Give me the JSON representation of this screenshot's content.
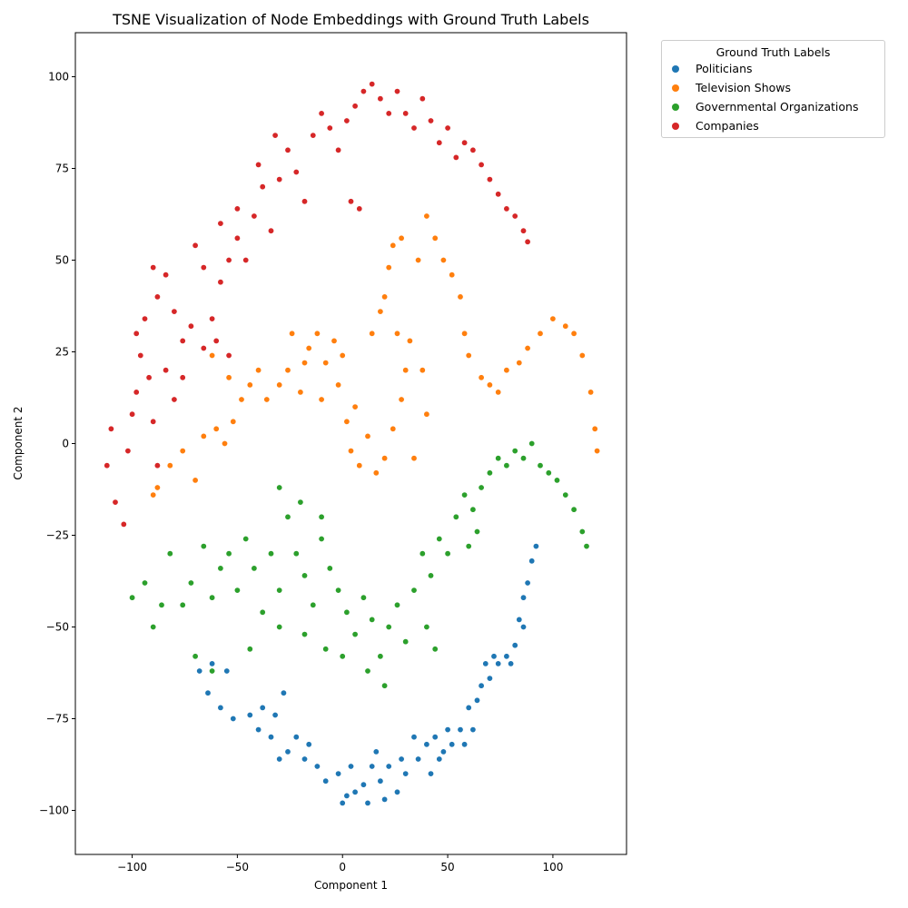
{
  "chart_data": {
    "type": "scatter",
    "title": "TSNE Visualization of Node Embeddings with Ground Truth Labels",
    "xlabel": "Component 1",
    "ylabel": "Component 2",
    "xlim": [
      -127,
      135
    ],
    "ylim": [
      -112,
      112
    ],
    "xticks": [
      -100,
      -50,
      0,
      50,
      100
    ],
    "yticks": [
      -100,
      -75,
      -50,
      -25,
      0,
      25,
      50,
      75,
      100
    ],
    "grid": false,
    "legend": {
      "title": "Ground Truth Labels",
      "placement": "outside upper right"
    },
    "series": [
      {
        "name": "Politicians",
        "color": "#1f77b4",
        "points": [
          [
            -68,
            -62
          ],
          [
            -64,
            -68
          ],
          [
            -58,
            -72
          ],
          [
            -52,
            -75
          ],
          [
            -44,
            -74
          ],
          [
            -38,
            -72
          ],
          [
            -32,
            -74
          ],
          [
            -28,
            -68
          ],
          [
            -22,
            -80
          ],
          [
            -16,
            -82
          ],
          [
            -12,
            -88
          ],
          [
            -8,
            -92
          ],
          [
            -2,
            -90
          ],
          [
            2,
            -96
          ],
          [
            6,
            -95
          ],
          [
            10,
            -93
          ],
          [
            14,
            -88
          ],
          [
            18,
            -92
          ],
          [
            22,
            -88
          ],
          [
            26,
            -95
          ],
          [
            30,
            -90
          ],
          [
            36,
            -86
          ],
          [
            40,
            -82
          ],
          [
            44,
            -80
          ],
          [
            48,
            -84
          ],
          [
            52,
            -82
          ],
          [
            56,
            -78
          ],
          [
            60,
            -72
          ],
          [
            64,
            -70
          ],
          [
            66,
            -66
          ],
          [
            70,
            -64
          ],
          [
            74,
            -60
          ],
          [
            78,
            -58
          ],
          [
            82,
            -55
          ],
          [
            84,
            -48
          ],
          [
            86,
            -42
          ],
          [
            88,
            -38
          ],
          [
            90,
            -32
          ],
          [
            92,
            -28
          ],
          [
            -62,
            -60
          ],
          [
            -55,
            -62
          ],
          [
            -34,
            -80
          ],
          [
            -26,
            -84
          ],
          [
            -18,
            -86
          ],
          [
            0,
            -98
          ],
          [
            12,
            -98
          ],
          [
            20,
            -97
          ],
          [
            34,
            -80
          ],
          [
            42,
            -90
          ],
          [
            50,
            -78
          ],
          [
            58,
            -82
          ],
          [
            68,
            -60
          ],
          [
            80,
            -60
          ],
          [
            86,
            -50
          ],
          [
            -40,
            -78
          ],
          [
            -30,
            -86
          ],
          [
            4,
            -88
          ],
          [
            16,
            -84
          ],
          [
            28,
            -86
          ],
          [
            46,
            -86
          ],
          [
            62,
            -78
          ],
          [
            72,
            -58
          ]
        ]
      },
      {
        "name": "Television Shows",
        "color": "#ff7f0e",
        "points": [
          [
            -88,
            -12
          ],
          [
            -82,
            -6
          ],
          [
            -76,
            -2
          ],
          [
            -70,
            -10
          ],
          [
            -66,
            2
          ],
          [
            -60,
            4
          ],
          [
            -56,
            0
          ],
          [
            -52,
            6
          ],
          [
            -48,
            12
          ],
          [
            -44,
            16
          ],
          [
            -40,
            20
          ],
          [
            -36,
            12
          ],
          [
            -30,
            16
          ],
          [
            -26,
            20
          ],
          [
            -20,
            14
          ],
          [
            -16,
            26
          ],
          [
            -12,
            30
          ],
          [
            -8,
            22
          ],
          [
            -4,
            28
          ],
          [
            0,
            24
          ],
          [
            2,
            6
          ],
          [
            4,
            -2
          ],
          [
            8,
            -6
          ],
          [
            12,
            2
          ],
          [
            16,
            -8
          ],
          [
            20,
            -4
          ],
          [
            24,
            4
          ],
          [
            28,
            12
          ],
          [
            30,
            20
          ],
          [
            32,
            28
          ],
          [
            34,
            -4
          ],
          [
            20,
            40
          ],
          [
            22,
            48
          ],
          [
            24,
            54
          ],
          [
            28,
            56
          ],
          [
            36,
            50
          ],
          [
            40,
            62
          ],
          [
            44,
            56
          ],
          [
            48,
            50
          ],
          [
            52,
            46
          ],
          [
            56,
            40
          ],
          [
            58,
            30
          ],
          [
            60,
            24
          ],
          [
            66,
            18
          ],
          [
            70,
            16
          ],
          [
            74,
            14
          ],
          [
            78,
            20
          ],
          [
            84,
            22
          ],
          [
            88,
            26
          ],
          [
            94,
            30
          ],
          [
            100,
            34
          ],
          [
            106,
            32
          ],
          [
            110,
            30
          ],
          [
            114,
            24
          ],
          [
            118,
            14
          ],
          [
            120,
            4
          ],
          [
            121,
            -2
          ],
          [
            14,
            30
          ],
          [
            18,
            36
          ],
          [
            26,
            30
          ],
          [
            38,
            20
          ],
          [
            40,
            8
          ],
          [
            -24,
            30
          ],
          [
            -18,
            22
          ],
          [
            -10,
            12
          ],
          [
            -2,
            16
          ],
          [
            6,
            10
          ],
          [
            -62,
            24
          ],
          [
            -54,
            18
          ],
          [
            -90,
            -14
          ]
        ]
      },
      {
        "name": "Governmental Organizations",
        "color": "#2ca02c",
        "points": [
          [
            -100,
            -42
          ],
          [
            -94,
            -38
          ],
          [
            -90,
            -50
          ],
          [
            -86,
            -44
          ],
          [
            -82,
            -30
          ],
          [
            -76,
            -44
          ],
          [
            -72,
            -38
          ],
          [
            -66,
            -28
          ],
          [
            -62,
            -42
          ],
          [
            -58,
            -34
          ],
          [
            -54,
            -30
          ],
          [
            -50,
            -40
          ],
          [
            -46,
            -26
          ],
          [
            -42,
            -34
          ],
          [
            -38,
            -46
          ],
          [
            -34,
            -30
          ],
          [
            -30,
            -40
          ],
          [
            -26,
            -20
          ],
          [
            -22,
            -30
          ],
          [
            -18,
            -36
          ],
          [
            -14,
            -44
          ],
          [
            -10,
            -26
          ],
          [
            -6,
            -34
          ],
          [
            -2,
            -40
          ],
          [
            2,
            -46
          ],
          [
            6,
            -52
          ],
          [
            10,
            -42
          ],
          [
            14,
            -48
          ],
          [
            18,
            -58
          ],
          [
            22,
            -50
          ],
          [
            26,
            -44
          ],
          [
            30,
            -54
          ],
          [
            34,
            -40
          ],
          [
            38,
            -30
          ],
          [
            42,
            -36
          ],
          [
            46,
            -26
          ],
          [
            50,
            -30
          ],
          [
            54,
            -20
          ],
          [
            58,
            -14
          ],
          [
            62,
            -18
          ],
          [
            66,
            -12
          ],
          [
            70,
            -8
          ],
          [
            74,
            -4
          ],
          [
            78,
            -6
          ],
          [
            82,
            -2
          ],
          [
            86,
            -4
          ],
          [
            90,
            0
          ],
          [
            94,
            -6
          ],
          [
            98,
            -8
          ],
          [
            102,
            -10
          ],
          [
            106,
            -14
          ],
          [
            110,
            -18
          ],
          [
            114,
            -24
          ],
          [
            116,
            -28
          ],
          [
            -70,
            -58
          ],
          [
            -62,
            -62
          ],
          [
            -44,
            -56
          ],
          [
            -30,
            -50
          ],
          [
            -18,
            -52
          ],
          [
            -8,
            -56
          ],
          [
            0,
            -58
          ],
          [
            12,
            -62
          ],
          [
            20,
            -66
          ],
          [
            40,
            -50
          ],
          [
            44,
            -56
          ],
          [
            -30,
            -12
          ],
          [
            -20,
            -16
          ],
          [
            -10,
            -20
          ],
          [
            60,
            -28
          ],
          [
            64,
            -24
          ]
        ]
      },
      {
        "name": "Companies",
        "color": "#d62728",
        "points": [
          [
            -112,
            -6
          ],
          [
            -110,
            4
          ],
          [
            -108,
            -16
          ],
          [
            -104,
            -22
          ],
          [
            -102,
            -2
          ],
          [
            -100,
            8
          ],
          [
            -98,
            14
          ],
          [
            -96,
            24
          ],
          [
            -92,
            18
          ],
          [
            -90,
            6
          ],
          [
            -88,
            -6
          ],
          [
            -98,
            30
          ],
          [
            -94,
            34
          ],
          [
            -88,
            40
          ],
          [
            -84,
            46
          ],
          [
            -80,
            36
          ],
          [
            -76,
            28
          ],
          [
            -72,
            32
          ],
          [
            -66,
            26
          ],
          [
            -62,
            34
          ],
          [
            -58,
            44
          ],
          [
            -54,
            50
          ],
          [
            -50,
            56
          ],
          [
            -46,
            50
          ],
          [
            -42,
            62
          ],
          [
            -38,
            70
          ],
          [
            -34,
            58
          ],
          [
            -30,
            72
          ],
          [
            -26,
            80
          ],
          [
            -22,
            74
          ],
          [
            -18,
            66
          ],
          [
            -14,
            84
          ],
          [
            -10,
            90
          ],
          [
            -6,
            86
          ],
          [
            -2,
            80
          ],
          [
            2,
            88
          ],
          [
            6,
            92
          ],
          [
            10,
            96
          ],
          [
            14,
            98
          ],
          [
            18,
            94
          ],
          [
            22,
            90
          ],
          [
            26,
            96
          ],
          [
            30,
            90
          ],
          [
            34,
            86
          ],
          [
            38,
            94
          ],
          [
            42,
            88
          ],
          [
            46,
            82
          ],
          [
            50,
            86
          ],
          [
            54,
            78
          ],
          [
            58,
            82
          ],
          [
            62,
            80
          ],
          [
            66,
            76
          ],
          [
            70,
            72
          ],
          [
            74,
            68
          ],
          [
            78,
            64
          ],
          [
            82,
            62
          ],
          [
            86,
            58
          ],
          [
            88,
            55
          ],
          [
            -70,
            54
          ],
          [
            -66,
            48
          ],
          [
            -58,
            60
          ],
          [
            -50,
            64
          ],
          [
            -40,
            76
          ],
          [
            -32,
            84
          ],
          [
            -84,
            20
          ],
          [
            -80,
            12
          ],
          [
            -76,
            18
          ],
          [
            -90,
            48
          ],
          [
            -60,
            28
          ],
          [
            -54,
            24
          ],
          [
            4,
            66
          ],
          [
            8,
            64
          ]
        ]
      }
    ]
  }
}
